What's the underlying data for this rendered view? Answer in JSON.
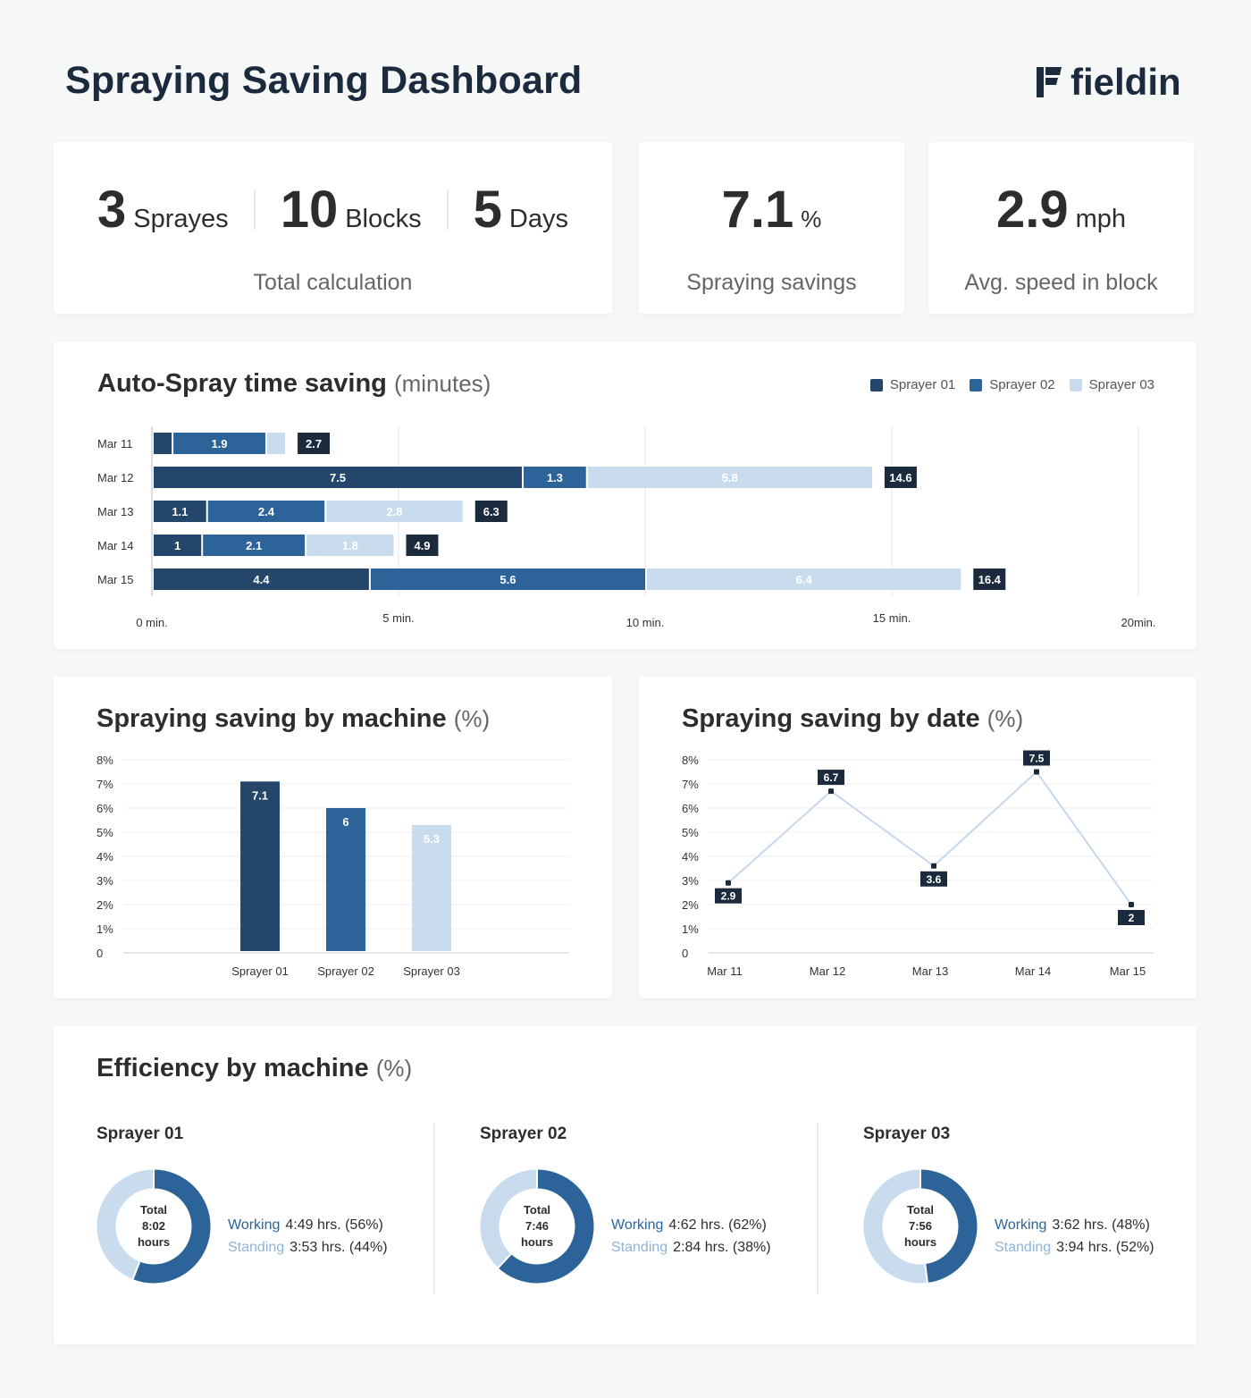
{
  "header": {
    "title": "Spraying Saving Dashboard",
    "logo_text": "fieldin"
  },
  "colors": {
    "sprayer01": "#24466a",
    "sprayer02": "#2c6399",
    "sprayer03": "#c9dcee",
    "label_dark": "#1b2a3d",
    "line": "#c6d8ea"
  },
  "kpis": {
    "total": {
      "items": [
        {
          "value": "3",
          "unit": "Sprayes"
        },
        {
          "value": "10",
          "unit": "Blocks"
        },
        {
          "value": "5",
          "unit": "Days"
        }
      ],
      "caption": "Total calculation"
    },
    "savings": {
      "value": "7.1",
      "unit": "%",
      "caption": "Spraying savings"
    },
    "speed": {
      "value": "2.9",
      "unit": "mph",
      "caption": "Avg. speed in block"
    }
  },
  "chart_data": [
    {
      "type": "bar",
      "orientation": "horizontal",
      "stacked": true,
      "title": "Auto-Spray time saving",
      "title_unit": "(minutes)",
      "legend": [
        "Sprayer 01",
        "Sprayer 02",
        "Sprayer 03"
      ],
      "legend_position": "top-right",
      "categories": [
        "Mar 11",
        "Mar 12",
        "Mar 13",
        "Mar 14",
        "Mar 15"
      ],
      "series": [
        {
          "name": "Sprayer 01",
          "values": [
            0.4,
            7.5,
            1.1,
            1,
            4.4
          ],
          "labels": [
            "",
            "7.5",
            "1.1",
            "1",
            "4.4"
          ]
        },
        {
          "name": "Sprayer 02",
          "values": [
            1.9,
            1.3,
            2.4,
            2.1,
            5.6
          ],
          "labels": [
            "1.9",
            "1.3",
            "2.4",
            "2.1",
            "5.6"
          ]
        },
        {
          "name": "Sprayer 03",
          "values": [
            0.4,
            5.8,
            2.8,
            1.8,
            6.4
          ],
          "labels": [
            "",
            "5.8",
            "2.8",
            "1.8",
            "6.4"
          ]
        }
      ],
      "totals": [
        "2.7",
        "14.6",
        "6.3",
        "4.9",
        "16.4"
      ],
      "xlim": [
        0,
        20
      ],
      "xticks": [
        0,
        5,
        10,
        15,
        20
      ],
      "xtick_labels": [
        "0 min.",
        "5 min.",
        "10 min.",
        "15 min.",
        "20min."
      ]
    },
    {
      "type": "bar",
      "title": "Spraying saving by machine",
      "title_unit": "(%)",
      "categories": [
        "Sprayer 01",
        "Sprayer 02",
        "Sprayer 03"
      ],
      "values": [
        7.1,
        6,
        5.3
      ],
      "labels": [
        "7.1",
        "6",
        "5.3"
      ],
      "ylim": [
        0,
        8
      ],
      "ytick_labels": [
        "0",
        "1%",
        "2%",
        "3%",
        "4%",
        "5%",
        "6%",
        "7%",
        "8%"
      ],
      "grid": true
    },
    {
      "type": "line",
      "title": "Spraying saving by date",
      "title_unit": "(%)",
      "categories": [
        "Mar 11",
        "Mar 12",
        "Mar 13",
        "Mar 14",
        "Mar 15"
      ],
      "values": [
        2.9,
        6.7,
        3.6,
        7.5,
        2
      ],
      "labels": [
        "2.9",
        "6.7",
        "3.6",
        "7.5",
        "2"
      ],
      "label_positions": [
        "below",
        "above",
        "below",
        "above",
        "below"
      ],
      "ylim": [
        0,
        8
      ],
      "ytick_labels": [
        "0",
        "1%",
        "2%",
        "3%",
        "4%",
        "5%",
        "6%",
        "7%",
        "8%"
      ],
      "grid": true
    },
    {
      "type": "pie",
      "title": "Efficiency by machine",
      "title_unit": "(%)",
      "machines": [
        {
          "name": "Sprayer 01",
          "total_label": "Total",
          "total_value": "8:02",
          "total_unit": "hours",
          "working_label": "Working",
          "working_value": "4:49 hrs. (56%)",
          "working_pct": 56,
          "standing_label": "Standing",
          "standing_value": "3:53 hrs. (44%)",
          "standing_pct": 44
        },
        {
          "name": "Sprayer 02",
          "total_label": "Total",
          "total_value": "7:46",
          "total_unit": "hours",
          "working_label": "Working",
          "working_value": "4:62 hrs. (62%)",
          "working_pct": 62,
          "standing_label": "Standing",
          "standing_value": "2:84 hrs. (38%)",
          "standing_pct": 38
        },
        {
          "name": "Sprayer 03",
          "total_label": "Total",
          "total_value": "7:56",
          "total_unit": "hours",
          "working_label": "Working",
          "working_value": "3:62 hrs. (48%)",
          "working_pct": 48,
          "standing_label": "Standing",
          "standing_value": "3:94 hrs. (52%)",
          "standing_pct": 52
        }
      ]
    }
  ]
}
